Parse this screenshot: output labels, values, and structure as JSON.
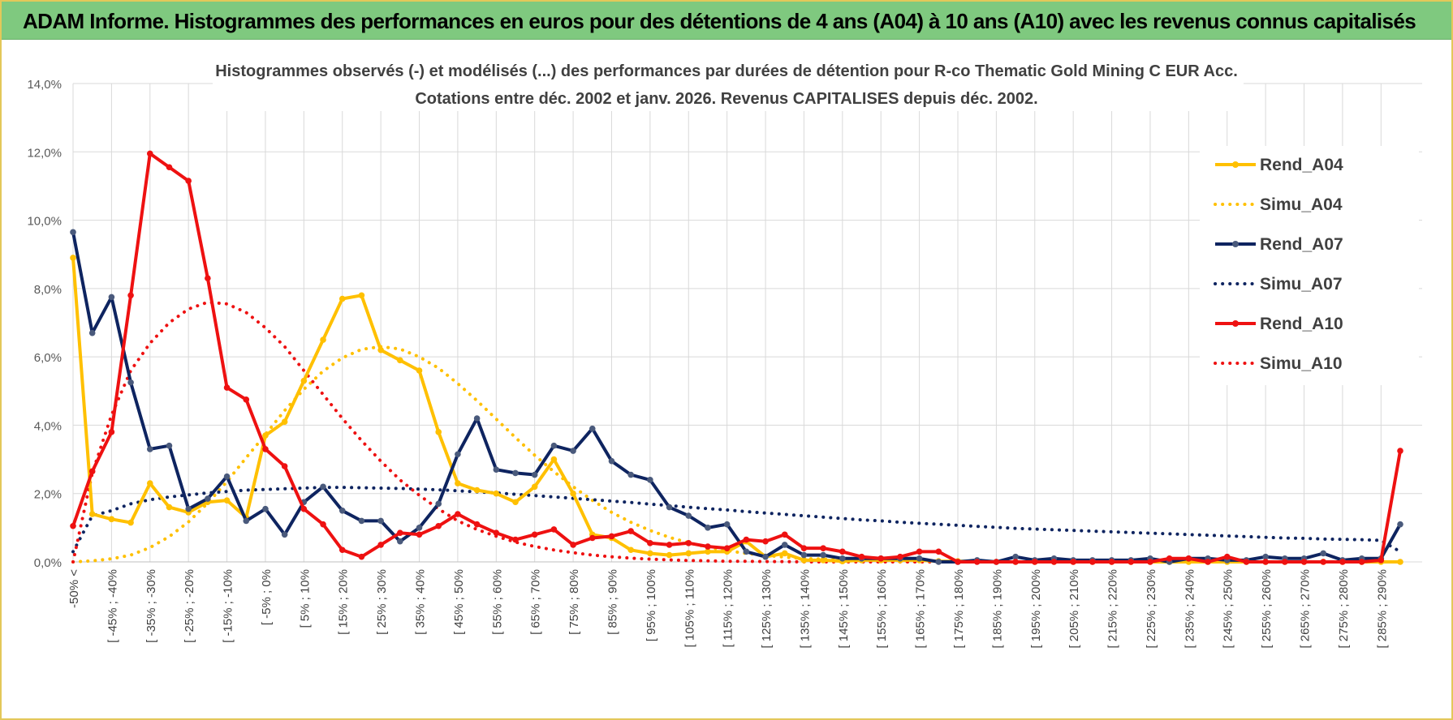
{
  "banner": {
    "title": "ADAM Informe. Histogrammes des performances en euros pour des détentions de 4 ans (A04) à 10 ans (A10) avec les revenus connus capitalisés"
  },
  "colors": {
    "banner_bg": "#7fc97f",
    "frame": "#e3c85a",
    "grid": "#d9d9d9",
    "a04": "#ffc000",
    "a07": "#0e2460",
    "a10": "#ee1111"
  },
  "chart_data": {
    "type": "line",
    "title": "Histogrammes observés (-) et modélisés (...) des performances par durées de détention pour R-co Thematic Gold Mining C EUR Acc.",
    "subtitle": "Cotations entre déc. 2002 et janv. 2026.  Revenus CAPITALISES depuis déc. 2002.",
    "xlabel": "",
    "ylabel": "",
    "ylim": [
      0,
      14
    ],
    "grid": true,
    "legend_position": "right",
    "y_ticks": [
      "0,0%",
      "2,0%",
      "4,0%",
      "6,0%",
      "8,0%",
      "10,0%",
      "12,0%",
      "14,0%"
    ],
    "x_tick_labels": [
      "-50% <",
      "[ -45% ; -40%",
      "[ -35% ; -30%",
      "[ -25% ; -20%",
      "[ -15% ; -10%",
      "[ -5% ; 0%",
      "[ 5% ; 10%",
      "[ 15% ; 20%",
      "[ 25% ; 30%",
      "[ 35% ; 40%",
      "[ 45% ; 50%",
      "[ 55% ; 60%",
      "[ 65% ; 70%",
      "[ 75% ; 80%",
      "[ 85% ; 90%",
      "[ 95% ; 100%",
      "[ 105% ; 110%",
      "[ 115% ; 120%",
      "[ 125% ; 130%",
      "[ 135% ; 140%",
      "[ 145% ; 150%",
      "[ 155% ; 160%",
      "[ 165% ; 170%",
      "[ 175% ; 180%",
      "[ 185% ; 190%",
      "[ 195% ; 200%",
      "[ 205% ; 210%",
      "[ 215% ; 220%",
      "[ 225% ; 230%",
      "[ 235% ; 240%",
      "[ 245% ; 250%",
      "[ 255% ; 260%",
      "[ 265% ; 270%",
      "[ 275% ; 280%",
      "[ 285% ; 290%"
    ],
    "n_bins": 70,
    "series": [
      {
        "name": "Rend_A04",
        "color": "#ffc000",
        "style": "solid",
        "values": [
          8.9,
          1.4,
          1.25,
          1.15,
          2.3,
          1.6,
          1.45,
          1.75,
          1.8,
          1.3,
          3.7,
          4.1,
          5.3,
          6.5,
          7.7,
          7.8,
          6.2,
          5.9,
          5.6,
          3.8,
          2.3,
          2.1,
          2.0,
          1.75,
          2.2,
          3.0,
          2.0,
          0.8,
          0.7,
          0.35,
          0.25,
          0.2,
          0.25,
          0.3,
          0.3,
          0.6,
          0.15,
          0.25,
          0.05,
          0.05,
          0.02,
          0.05,
          0.05,
          0.05,
          0.05,
          0.02,
          0.02,
          0.02,
          0.0,
          0.0,
          0.0,
          0.0,
          0.0,
          0.0,
          0.0,
          0.0,
          0.0,
          0.0,
          0.0,
          0.0,
          0.0,
          0.0,
          0.0,
          0.0,
          0.0,
          0.0,
          0.0,
          0.0,
          0.0,
          0.0
        ]
      },
      {
        "name": "Simu_A04",
        "color": "#ffc000",
        "style": "dotted",
        "values": [
          0.0,
          0.03,
          0.09,
          0.2,
          0.42,
          0.74,
          1.17,
          1.72,
          2.35,
          3.05,
          3.73,
          4.43,
          5.05,
          5.58,
          5.97,
          6.22,
          6.3,
          6.23,
          6.0,
          5.67,
          5.22,
          4.72,
          4.18,
          3.64,
          3.12,
          2.64,
          2.2,
          1.8,
          1.45,
          1.16,
          0.92,
          0.72,
          0.56,
          0.43,
          0.33,
          0.25,
          0.19,
          0.14,
          0.1,
          0.08,
          0.06,
          0.04,
          0.03,
          0.02,
          0.02,
          0.01,
          0.01,
          0.0,
          0.0,
          0.0,
          0.0,
          0.0,
          0.0,
          0.0,
          0.0,
          0.0,
          0.0,
          0.0,
          0.0,
          0.0,
          0.0,
          0.0,
          0.0,
          0.0,
          0.0,
          0.0,
          0.0,
          0.0,
          0.0,
          0.0
        ]
      },
      {
        "name": "Rend_A07",
        "color": "#0e2460",
        "style": "solid",
        "values": [
          9.65,
          6.7,
          7.75,
          5.25,
          3.3,
          3.4,
          1.55,
          1.85,
          2.5,
          1.2,
          1.55,
          0.8,
          1.75,
          2.2,
          1.5,
          1.2,
          1.2,
          0.6,
          1.0,
          1.7,
          3.15,
          4.2,
          2.7,
          2.6,
          2.55,
          3.4,
          3.25,
          3.9,
          2.95,
          2.55,
          2.4,
          1.6,
          1.35,
          1.0,
          1.1,
          0.3,
          0.15,
          0.5,
          0.2,
          0.2,
          0.1,
          0.1,
          0.1,
          0.1,
          0.1,
          0.0,
          0.0,
          0.05,
          0.0,
          0.15,
          0.05,
          0.1,
          0.05,
          0.05,
          0.05,
          0.05,
          0.1,
          0.0,
          0.1,
          0.1,
          0.05,
          0.05,
          0.15,
          0.1,
          0.1,
          0.25,
          0.05,
          0.1,
          0.1,
          1.1
        ]
      },
      {
        "name": "Simu_A07",
        "color": "#0e2460",
        "style": "dotted",
        "values": [
          0.3,
          1.35,
          1.5,
          1.7,
          1.82,
          1.9,
          1.96,
          2.02,
          2.06,
          2.1,
          2.12,
          2.14,
          2.16,
          2.18,
          2.18,
          2.17,
          2.16,
          2.15,
          2.13,
          2.11,
          2.08,
          2.05,
          2.02,
          1.98,
          1.94,
          1.9,
          1.86,
          1.82,
          1.78,
          1.74,
          1.69,
          1.65,
          1.6,
          1.56,
          1.52,
          1.47,
          1.43,
          1.39,
          1.35,
          1.31,
          1.27,
          1.23,
          1.2,
          1.16,
          1.13,
          1.1,
          1.07,
          1.04,
          1.01,
          0.98,
          0.96,
          0.94,
          0.92,
          0.9,
          0.88,
          0.86,
          0.84,
          0.82,
          0.8,
          0.78,
          0.76,
          0.74,
          0.72,
          0.7,
          0.69,
          0.67,
          0.66,
          0.65,
          0.63,
          0.3
        ]
      },
      {
        "name": "Rend_A10",
        "color": "#ee1111",
        "style": "solid",
        "values": [
          1.05,
          2.65,
          3.8,
          7.8,
          11.95,
          11.55,
          11.15,
          8.3,
          5.1,
          4.75,
          3.3,
          2.8,
          1.55,
          1.1,
          0.35,
          0.15,
          0.5,
          0.85,
          0.8,
          1.05,
          1.4,
          1.1,
          0.85,
          0.65,
          0.8,
          0.95,
          0.5,
          0.7,
          0.75,
          0.9,
          0.55,
          0.5,
          0.55,
          0.45,
          0.4,
          0.65,
          0.6,
          0.8,
          0.4,
          0.4,
          0.3,
          0.15,
          0.1,
          0.15,
          0.3,
          0.3,
          0.0,
          0.0,
          0.0,
          0.0,
          0.0,
          0.0,
          0.0,
          0.0,
          0.0,
          0.0,
          0.0,
          0.1,
          0.1,
          0.0,
          0.15,
          0.0,
          0.0,
          0.0,
          0.0,
          0.0,
          0.0,
          0.0,
          0.05,
          3.25
        ]
      },
      {
        "name": "Simu_A10",
        "color": "#ee1111",
        "style": "dotted",
        "values": [
          0.0,
          2.6,
          4.3,
          5.6,
          6.4,
          7.0,
          7.4,
          7.6,
          7.55,
          7.3,
          6.85,
          6.3,
          5.6,
          4.9,
          4.2,
          3.55,
          2.95,
          2.4,
          1.95,
          1.55,
          1.2,
          0.95,
          0.75,
          0.58,
          0.45,
          0.35,
          0.27,
          0.2,
          0.15,
          0.11,
          0.08,
          0.06,
          0.04,
          0.03,
          0.02,
          0.02,
          0.01,
          0.01,
          0.0,
          0.0,
          0.0,
          0.0,
          0.0,
          0.0,
          0.0,
          0.0,
          0.0,
          0.0,
          0.0,
          0.0,
          0.0,
          0.0,
          0.0,
          0.0,
          0.0,
          0.0,
          0.0,
          0.0,
          0.0,
          0.0,
          0.0,
          0.0,
          0.0,
          0.0,
          0.0,
          0.0,
          0.0,
          0.0,
          0.0,
          0.0
        ]
      }
    ]
  }
}
